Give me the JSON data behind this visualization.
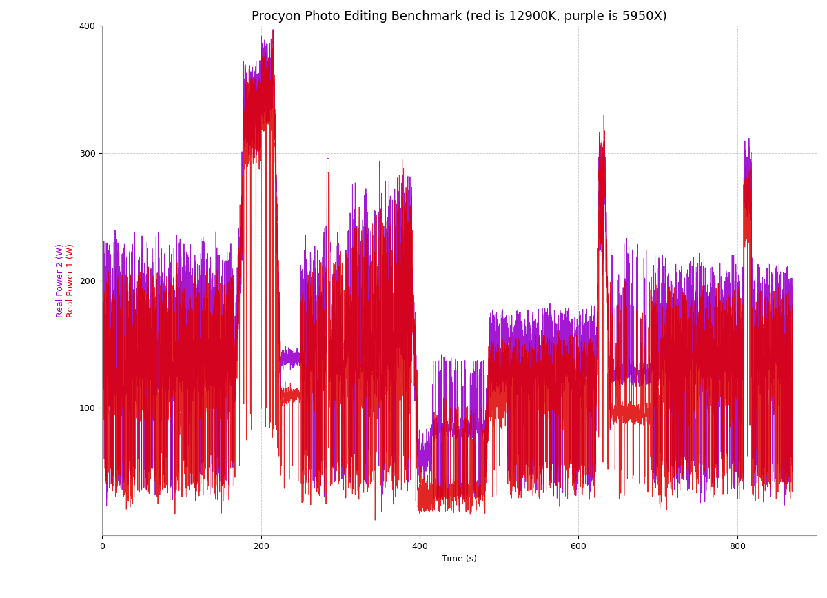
{
  "title": "Procyon Photo Editing Benchmark (red is 12900K, purple is 5950X)",
  "xlabel": "Time (s)",
  "ylabel_red": "Real Power 1 (W)",
  "ylabel_purple": "Real Power 2 (W)",
  "xlim": [
    0,
    900
  ],
  "ylim": [
    0,
    400
  ],
  "yticks": [
    100,
    200,
    300,
    400
  ],
  "xticks": [
    0,
    200,
    400,
    600,
    800
  ],
  "color_red": "#dd0000",
  "color_purple": "#9900cc",
  "background_color": "#ffffff",
  "grid_color": "#bbbbbb",
  "title_fontsize": 13,
  "label_fontsize": 9,
  "figsize": [
    12.0,
    8.67
  ],
  "dpi": 100
}
